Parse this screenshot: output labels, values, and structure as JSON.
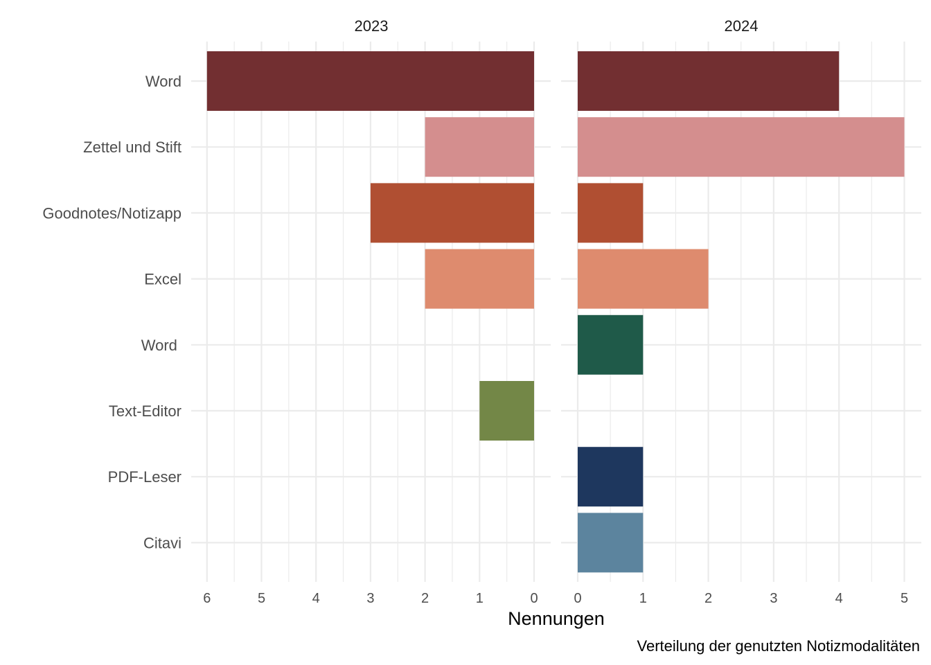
{
  "chart_data": {
    "type": "bar",
    "orientation": "horizontal",
    "caption": "Verteilung der genutzten Notizmodalitäten",
    "xlabel": "Nennungen",
    "categories": [
      "Word",
      "Zettel und Stift",
      "Goodnotes/Notizapp",
      "Excel",
      "Word ",
      "Text-Editor",
      "PDF-Leser",
      "Citavi"
    ],
    "colors": [
      "#722F31",
      "#D48E8E",
      "#B04F32",
      "#DE8B6E",
      "#1F5A49",
      "#738747",
      "#1E375E",
      "#5C849E"
    ],
    "grid": true,
    "panels": [
      {
        "title": "2023",
        "xlim": [
          6,
          0
        ],
        "ticks": [
          6,
          5,
          4,
          3,
          2,
          1,
          0
        ],
        "values": [
          6,
          2,
          3,
          2,
          0,
          1,
          0,
          0
        ]
      },
      {
        "title": "2024",
        "xlim": [
          0,
          5
        ],
        "ticks": [
          0,
          1,
          2,
          3,
          4,
          5
        ],
        "values": [
          4,
          5,
          1,
          2,
          1,
          0,
          1,
          1
        ]
      }
    ]
  }
}
